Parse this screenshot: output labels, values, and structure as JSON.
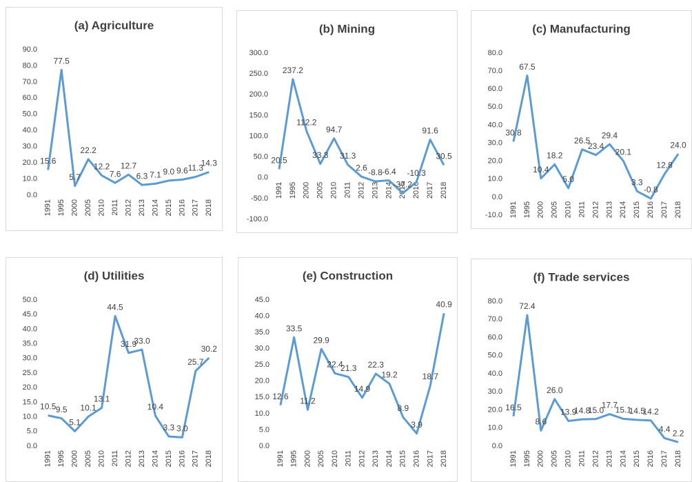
{
  "chart_data": [
    {
      "type": "line",
      "title": "(a) Agriculture",
      "categories": [
        "1991",
        "1995",
        "2000",
        "2005",
        "2010",
        "2011",
        "2012",
        "2013",
        "2014",
        "2015",
        "2016",
        "2017",
        "2018"
      ],
      "values": [
        15.6,
        77.5,
        5.7,
        22.2,
        12.2,
        7.6,
        12.7,
        6.3,
        7.1,
        9.0,
        9.6,
        11.3,
        14.3
      ],
      "value_labels": [
        "15.6",
        "77.5",
        "5.7",
        "22.2",
        "12.2",
        "7.6",
        "12.7",
        "6.3",
        "7.1",
        "9.0",
        "9.6",
        "11.3",
        "14.3"
      ],
      "color": "#5b9bd5",
      "ylim": [
        0,
        90
      ],
      "yticks": [
        {
          "value": 0,
          "label": "0.0"
        },
        {
          "value": 10,
          "label": "10.0"
        },
        {
          "value": 20,
          "label": "20.0"
        },
        {
          "value": 30,
          "label": "30.0"
        },
        {
          "value": 40,
          "label": "40.0"
        },
        {
          "value": 50,
          "label": "50.0"
        },
        {
          "value": 60,
          "label": "60.0"
        },
        {
          "value": 70,
          "label": "70.0"
        },
        {
          "value": 80,
          "label": "80.0"
        },
        {
          "value": 90,
          "label": "90.0"
        }
      ]
    },
    {
      "type": "line",
      "title": "(b) Mining",
      "categories": [
        "1991",
        "1995",
        "2000",
        "2005",
        "2010",
        "2011",
        "2012",
        "2013",
        "2014",
        "2015",
        "2016",
        "2017",
        "2018"
      ],
      "values": [
        20.5,
        237.2,
        112.2,
        33.3,
        94.7,
        31.3,
        2.6,
        -8.8,
        -6.4,
        -37.2,
        -10.3,
        91.6,
        30.5
      ],
      "value_labels": [
        "20.5",
        "237.2",
        "112.2",
        "33.3",
        "94.7",
        "31.3",
        "2.6",
        "-8.8",
        "-6.4",
        "-37.2",
        "-10.3",
        "91.6",
        "30.5"
      ],
      "color": "#5b9bd5",
      "ylim": [
        -100,
        300
      ],
      "yticks": [
        {
          "value": -100,
          "label": "-100.0"
        },
        {
          "value": -50,
          "label": "-50.0"
        },
        {
          "value": 0,
          "label": "0.0"
        },
        {
          "value": 50,
          "label": "50.0"
        },
        {
          "value": 100,
          "label": "100.0"
        },
        {
          "value": 150,
          "label": "150.0"
        },
        {
          "value": 200,
          "label": "200.0"
        },
        {
          "value": 250,
          "label": "250.0"
        },
        {
          "value": 300,
          "label": "300.0"
        }
      ]
    },
    {
      "type": "line",
      "title": "(c) Manufacturing",
      "categories": [
        "1991",
        "1995",
        "2000",
        "2005",
        "2010",
        "2011",
        "2012",
        "2013",
        "2014",
        "2015",
        "2016",
        "2017",
        "2018"
      ],
      "values": [
        30.8,
        67.5,
        10.4,
        18.2,
        5.0,
        26.5,
        23.4,
        29.4,
        20.1,
        3.3,
        -0.8,
        12.8,
        24.0
      ],
      "value_labels": [
        "30.8",
        "67.5",
        "10.4",
        "18.2",
        "5.0",
        "26.5",
        "23.4",
        "29.4",
        "20.1",
        "3.3",
        "-0.8",
        "12.8",
        "24.0"
      ],
      "color": "#5b9bd5",
      "ylim": [
        -10,
        80
      ],
      "yticks": [
        {
          "value": -10,
          "label": "-10.0"
        },
        {
          "value": 0,
          "label": "0.0"
        },
        {
          "value": 10,
          "label": "10.0"
        },
        {
          "value": 20,
          "label": "20.0"
        },
        {
          "value": 30,
          "label": "30.0"
        },
        {
          "value": 40,
          "label": "40.0"
        },
        {
          "value": 50,
          "label": "50.0"
        },
        {
          "value": 60,
          "label": "60.0"
        },
        {
          "value": 70,
          "label": "70.0"
        },
        {
          "value": 80,
          "label": "80.0"
        }
      ]
    },
    {
      "type": "line",
      "title": "(d) Utilities",
      "categories": [
        "1991",
        "1995",
        "2000",
        "2005",
        "2010",
        "2011",
        "2012",
        "2013",
        "2014",
        "2015",
        "2016",
        "2017",
        "2018"
      ],
      "values": [
        10.5,
        9.5,
        5.1,
        10.1,
        13.1,
        44.5,
        31.9,
        33.0,
        10.4,
        3.3,
        3.0,
        25.7,
        30.2
      ],
      "value_labels": [
        "10.5",
        "9.5",
        "5.1",
        "10.1",
        "13.1",
        "44.5",
        "31.9",
        "33.0",
        "10.4",
        "3.3",
        "3.0",
        "25.7",
        "30.2"
      ],
      "color": "#5b9bd5",
      "ylim": [
        0,
        50
      ],
      "yticks": [
        {
          "value": 0,
          "label": "0.0"
        },
        {
          "value": 5,
          "label": "5.0"
        },
        {
          "value": 10,
          "label": "10.0"
        },
        {
          "value": 15,
          "label": "15.0"
        },
        {
          "value": 20,
          "label": "20.0"
        },
        {
          "value": 25,
          "label": "25.0"
        },
        {
          "value": 30,
          "label": "30.0"
        },
        {
          "value": 35,
          "label": "35.0"
        },
        {
          "value": 40,
          "label": "40.0"
        },
        {
          "value": 45,
          "label": "45.0"
        },
        {
          "value": 50,
          "label": "50.0"
        }
      ]
    },
    {
      "type": "line",
      "title": "(e) Construction",
      "categories": [
        "1991",
        "1995",
        "2000",
        "2005",
        "2010",
        "2011",
        "2012",
        "2013",
        "2014",
        "2015",
        "2016",
        "2017",
        "2018"
      ],
      "values": [
        12.6,
        33.5,
        11.2,
        29.9,
        22.4,
        21.3,
        14.9,
        22.3,
        19.2,
        8.9,
        3.9,
        18.7,
        40.9
      ],
      "value_labels": [
        "12.6",
        "33.5",
        "11.2",
        "29.9",
        "22.4",
        "21.3",
        "14.9",
        "22.3",
        "19.2",
        "8.9",
        "3.9",
        "18.7",
        "40.9"
      ],
      "color": "#5b9bd5",
      "ylim": [
        0,
        45
      ],
      "yticks": [
        {
          "value": 0,
          "label": "0.0"
        },
        {
          "value": 5,
          "label": "5.0"
        },
        {
          "value": 10,
          "label": "10.0"
        },
        {
          "value": 15,
          "label": "15.0"
        },
        {
          "value": 20,
          "label": "20.0"
        },
        {
          "value": 25,
          "label": "25.0"
        },
        {
          "value": 30,
          "label": "30.0"
        },
        {
          "value": 35,
          "label": "35.0"
        },
        {
          "value": 40,
          "label": "40.0"
        },
        {
          "value": 45,
          "label": "45.0"
        }
      ]
    },
    {
      "type": "line",
      "title": "(f) Trade services",
      "categories": [
        "1991",
        "1995",
        "2000",
        "2005",
        "2010",
        "2011",
        "2012",
        "2013",
        "2014",
        "2015",
        "2016",
        "2017",
        "2018"
      ],
      "values": [
        16.5,
        72.4,
        8.6,
        26.0,
        13.9,
        14.8,
        15.0,
        17.7,
        15.1,
        14.5,
        14.2,
        4.4,
        2.2
      ],
      "value_labels": [
        "16.5",
        "72.4",
        "8.6",
        "26.0",
        "13.9",
        "14.8",
        "15.0",
        "17.7",
        "15.1",
        "14.5",
        "14.2",
        "4.4",
        "2.2"
      ],
      "color": "#5b9bd5",
      "ylim": [
        0,
        80
      ],
      "yticks": [
        {
          "value": 0,
          "label": "0.0"
        },
        {
          "value": 10,
          "label": "10.0"
        },
        {
          "value": 20,
          "label": "20.0"
        },
        {
          "value": 30,
          "label": "30.0"
        },
        {
          "value": 40,
          "label": "40.0"
        },
        {
          "value": 50,
          "label": "50.0"
        },
        {
          "value": 60,
          "label": "60.0"
        },
        {
          "value": 70,
          "label": "70.0"
        },
        {
          "value": 80,
          "label": "80.0"
        }
      ]
    }
  ]
}
